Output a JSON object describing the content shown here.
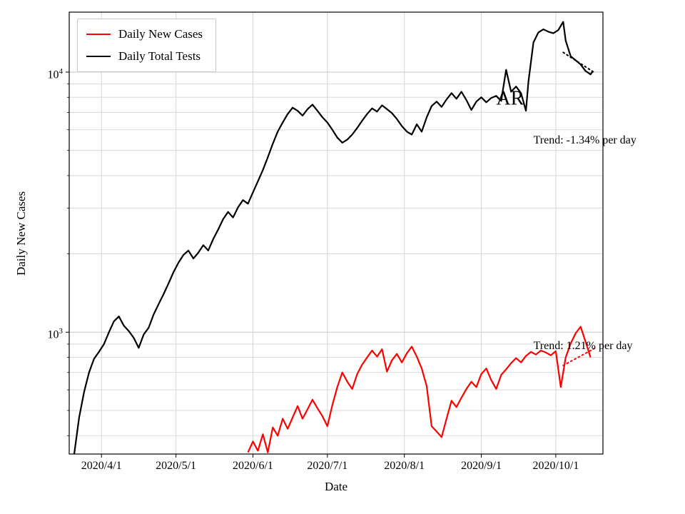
{
  "chart_data": {
    "type": "line",
    "title": "",
    "xlabel": "Date",
    "ylabel": "Daily New Cases",
    "yscale": "log",
    "grid": true,
    "legend_position": "upper left",
    "xlim": [
      "2020-03-19",
      "2020-10-20"
    ],
    "ylim": [
      340,
      17000
    ],
    "x_ticks": [
      {
        "label": "2020/4/1",
        "date": "2020-04-01"
      },
      {
        "label": "2020/5/1",
        "date": "2020-05-01"
      },
      {
        "label": "2020/6/1",
        "date": "2020-06-01"
      },
      {
        "label": "2020/7/1",
        "date": "2020-07-01"
      },
      {
        "label": "2020/8/1",
        "date": "2020-08-01"
      },
      {
        "label": "2020/9/1",
        "date": "2020-09-01"
      },
      {
        "label": "2020/10/1",
        "date": "2020-10-01"
      }
    ],
    "y_ticks": [
      {
        "base": "10",
        "exp": "4",
        "value": 10000
      },
      {
        "base": "10",
        "exp": "3",
        "value": 1000
      }
    ],
    "series": [
      {
        "name": "Daily New Cases",
        "color": "#ff0000",
        "style": "solid",
        "points": [
          [
            "2020-05-30",
            345
          ],
          [
            "2020-06-01",
            380
          ],
          [
            "2020-06-03",
            350
          ],
          [
            "2020-06-05",
            405
          ],
          [
            "2020-06-07",
            345
          ],
          [
            "2020-06-09",
            430
          ],
          [
            "2020-06-11",
            400
          ],
          [
            "2020-06-13",
            465
          ],
          [
            "2020-06-15",
            425
          ],
          [
            "2020-06-17",
            470
          ],
          [
            "2020-06-19",
            520
          ],
          [
            "2020-06-21",
            465
          ],
          [
            "2020-06-23",
            505
          ],
          [
            "2020-06-25",
            550
          ],
          [
            "2020-06-27",
            510
          ],
          [
            "2020-06-29",
            475
          ],
          [
            "2020-07-01",
            435
          ],
          [
            "2020-07-03",
            525
          ],
          [
            "2020-07-05",
            615
          ],
          [
            "2020-07-07",
            700
          ],
          [
            "2020-07-09",
            645
          ],
          [
            "2020-07-11",
            605
          ],
          [
            "2020-07-13",
            690
          ],
          [
            "2020-07-15",
            750
          ],
          [
            "2020-07-17",
            800
          ],
          [
            "2020-07-19",
            850
          ],
          [
            "2020-07-21",
            805
          ],
          [
            "2020-07-23",
            860
          ],
          [
            "2020-07-25",
            705
          ],
          [
            "2020-07-27",
            780
          ],
          [
            "2020-07-29",
            825
          ],
          [
            "2020-07-31",
            765
          ],
          [
            "2020-08-02",
            830
          ],
          [
            "2020-08-04",
            880
          ],
          [
            "2020-08-06",
            805
          ],
          [
            "2020-08-08",
            725
          ],
          [
            "2020-08-10",
            620
          ],
          [
            "2020-08-12",
            435
          ],
          [
            "2020-08-14",
            415
          ],
          [
            "2020-08-16",
            395
          ],
          [
            "2020-08-18",
            465
          ],
          [
            "2020-08-20",
            545
          ],
          [
            "2020-08-22",
            515
          ],
          [
            "2020-08-24",
            560
          ],
          [
            "2020-08-26",
            605
          ],
          [
            "2020-08-28",
            645
          ],
          [
            "2020-08-30",
            615
          ],
          [
            "2020-09-01",
            690
          ],
          [
            "2020-09-03",
            725
          ],
          [
            "2020-09-05",
            655
          ],
          [
            "2020-09-07",
            605
          ],
          [
            "2020-09-09",
            685
          ],
          [
            "2020-09-11",
            720
          ],
          [
            "2020-09-13",
            760
          ],
          [
            "2020-09-15",
            795
          ],
          [
            "2020-09-17",
            765
          ],
          [
            "2020-09-19",
            810
          ],
          [
            "2020-09-21",
            840
          ],
          [
            "2020-09-23",
            820
          ],
          [
            "2020-09-25",
            850
          ],
          [
            "2020-09-27",
            835
          ],
          [
            "2020-09-29",
            815
          ],
          [
            "2020-10-01",
            845
          ],
          [
            "2020-10-03",
            615
          ],
          [
            "2020-10-05",
            800
          ],
          [
            "2020-10-07",
            905
          ],
          [
            "2020-10-09",
            990
          ],
          [
            "2020-10-11",
            1050
          ],
          [
            "2020-10-13",
            920
          ],
          [
            "2020-10-15",
            800
          ]
        ]
      },
      {
        "name": "Daily Total Tests",
        "color": "#000000",
        "style": "solid",
        "points": [
          [
            "2020-03-21",
            340
          ],
          [
            "2020-03-23",
            470
          ],
          [
            "2020-03-25",
            590
          ],
          [
            "2020-03-27",
            700
          ],
          [
            "2020-03-29",
            790
          ],
          [
            "2020-03-31",
            840
          ],
          [
            "2020-04-02",
            900
          ],
          [
            "2020-04-04",
            1000
          ],
          [
            "2020-04-06",
            1100
          ],
          [
            "2020-04-08",
            1150
          ],
          [
            "2020-04-10",
            1060
          ],
          [
            "2020-04-12",
            1010
          ],
          [
            "2020-04-14",
            950
          ],
          [
            "2020-04-16",
            870
          ],
          [
            "2020-04-18",
            980
          ],
          [
            "2020-04-20",
            1040
          ],
          [
            "2020-04-22",
            1170
          ],
          [
            "2020-04-24",
            1280
          ],
          [
            "2020-04-26",
            1400
          ],
          [
            "2020-04-28",
            1540
          ],
          [
            "2020-04-30",
            1700
          ],
          [
            "2020-05-02",
            1850
          ],
          [
            "2020-05-04",
            1980
          ],
          [
            "2020-05-06",
            2060
          ],
          [
            "2020-05-08",
            1920
          ],
          [
            "2020-05-10",
            2020
          ],
          [
            "2020-05-12",
            2160
          ],
          [
            "2020-05-14",
            2060
          ],
          [
            "2020-05-16",
            2280
          ],
          [
            "2020-05-18",
            2480
          ],
          [
            "2020-05-20",
            2720
          ],
          [
            "2020-05-22",
            2900
          ],
          [
            "2020-05-24",
            2760
          ],
          [
            "2020-05-26",
            3020
          ],
          [
            "2020-05-28",
            3220
          ],
          [
            "2020-05-30",
            3120
          ],
          [
            "2020-06-01",
            3450
          ],
          [
            "2020-06-03",
            3800
          ],
          [
            "2020-06-05",
            4200
          ],
          [
            "2020-06-07",
            4700
          ],
          [
            "2020-06-09",
            5300
          ],
          [
            "2020-06-11",
            5900
          ],
          [
            "2020-06-13",
            6400
          ],
          [
            "2020-06-15",
            6900
          ],
          [
            "2020-06-17",
            7300
          ],
          [
            "2020-06-19",
            7100
          ],
          [
            "2020-06-21",
            6800
          ],
          [
            "2020-06-23",
            7200
          ],
          [
            "2020-06-25",
            7500
          ],
          [
            "2020-06-27",
            7100
          ],
          [
            "2020-06-29",
            6700
          ],
          [
            "2020-07-01",
            6400
          ],
          [
            "2020-07-03",
            6000
          ],
          [
            "2020-07-05",
            5600
          ],
          [
            "2020-07-07",
            5350
          ],
          [
            "2020-07-09",
            5500
          ],
          [
            "2020-07-11",
            5750
          ],
          [
            "2020-07-13",
            6100
          ],
          [
            "2020-07-15",
            6500
          ],
          [
            "2020-07-17",
            6900
          ],
          [
            "2020-07-19",
            7250
          ],
          [
            "2020-07-21",
            7050
          ],
          [
            "2020-07-23",
            7450
          ],
          [
            "2020-07-25",
            7200
          ],
          [
            "2020-07-27",
            6950
          ],
          [
            "2020-07-29",
            6600
          ],
          [
            "2020-07-31",
            6200
          ],
          [
            "2020-08-02",
            5900
          ],
          [
            "2020-08-04",
            5750
          ],
          [
            "2020-08-06",
            6300
          ],
          [
            "2020-08-08",
            5900
          ],
          [
            "2020-08-10",
            6700
          ],
          [
            "2020-08-12",
            7400
          ],
          [
            "2020-08-14",
            7700
          ],
          [
            "2020-08-16",
            7350
          ],
          [
            "2020-08-18",
            7850
          ],
          [
            "2020-08-20",
            8300
          ],
          [
            "2020-08-22",
            7900
          ],
          [
            "2020-08-24",
            8400
          ],
          [
            "2020-08-26",
            7800
          ],
          [
            "2020-08-28",
            7150
          ],
          [
            "2020-08-30",
            7700
          ],
          [
            "2020-09-01",
            8000
          ],
          [
            "2020-09-03",
            7650
          ],
          [
            "2020-09-05",
            7950
          ],
          [
            "2020-09-07",
            8100
          ],
          [
            "2020-09-09",
            7750
          ],
          [
            "2020-09-11",
            10200
          ],
          [
            "2020-09-13",
            8400
          ],
          [
            "2020-09-15",
            8800
          ],
          [
            "2020-09-17",
            8300
          ],
          [
            "2020-09-19",
            7100
          ],
          [
            "2020-09-20",
            9200
          ],
          [
            "2020-09-22",
            13000
          ],
          [
            "2020-09-24",
            14200
          ],
          [
            "2020-09-26",
            14600
          ],
          [
            "2020-09-28",
            14300
          ],
          [
            "2020-09-30",
            14100
          ],
          [
            "2020-10-02",
            14500
          ],
          [
            "2020-10-04",
            15600
          ],
          [
            "2020-10-05",
            13200
          ],
          [
            "2020-10-07",
            11500
          ],
          [
            "2020-10-09",
            11100
          ],
          [
            "2020-10-11",
            10700
          ],
          [
            "2020-10-13",
            10100
          ],
          [
            "2020-10-15",
            9800
          ],
          [
            "2020-10-16",
            10100
          ]
        ]
      },
      {
        "name": "Daily Total Tests trend",
        "color": "#000000",
        "style": "dotted",
        "in_legend": false,
        "points": [
          [
            "2020-10-04",
            11900
          ],
          [
            "2020-10-17",
            9900
          ]
        ]
      },
      {
        "name": "Daily New Cases trend",
        "color": "#ff0000",
        "style": "dotted",
        "in_legend": false,
        "points": [
          [
            "2020-10-04",
            745
          ],
          [
            "2020-10-17",
            870
          ]
        ]
      }
    ],
    "annotations": [
      {
        "text": "Trend: -1.34% per day",
        "x": "2020-09-22",
        "y": 5400,
        "color": "#000000",
        "font_size": 16
      },
      {
        "text": "Trend: 1.21% per day",
        "x": "2020-09-22",
        "y": 880,
        "color": "#000000",
        "font_size": 16
      },
      {
        "text": "AR",
        "x": "2020-09-07",
        "y": 7800,
        "color": "#000000",
        "font_size": 28
      }
    ]
  }
}
